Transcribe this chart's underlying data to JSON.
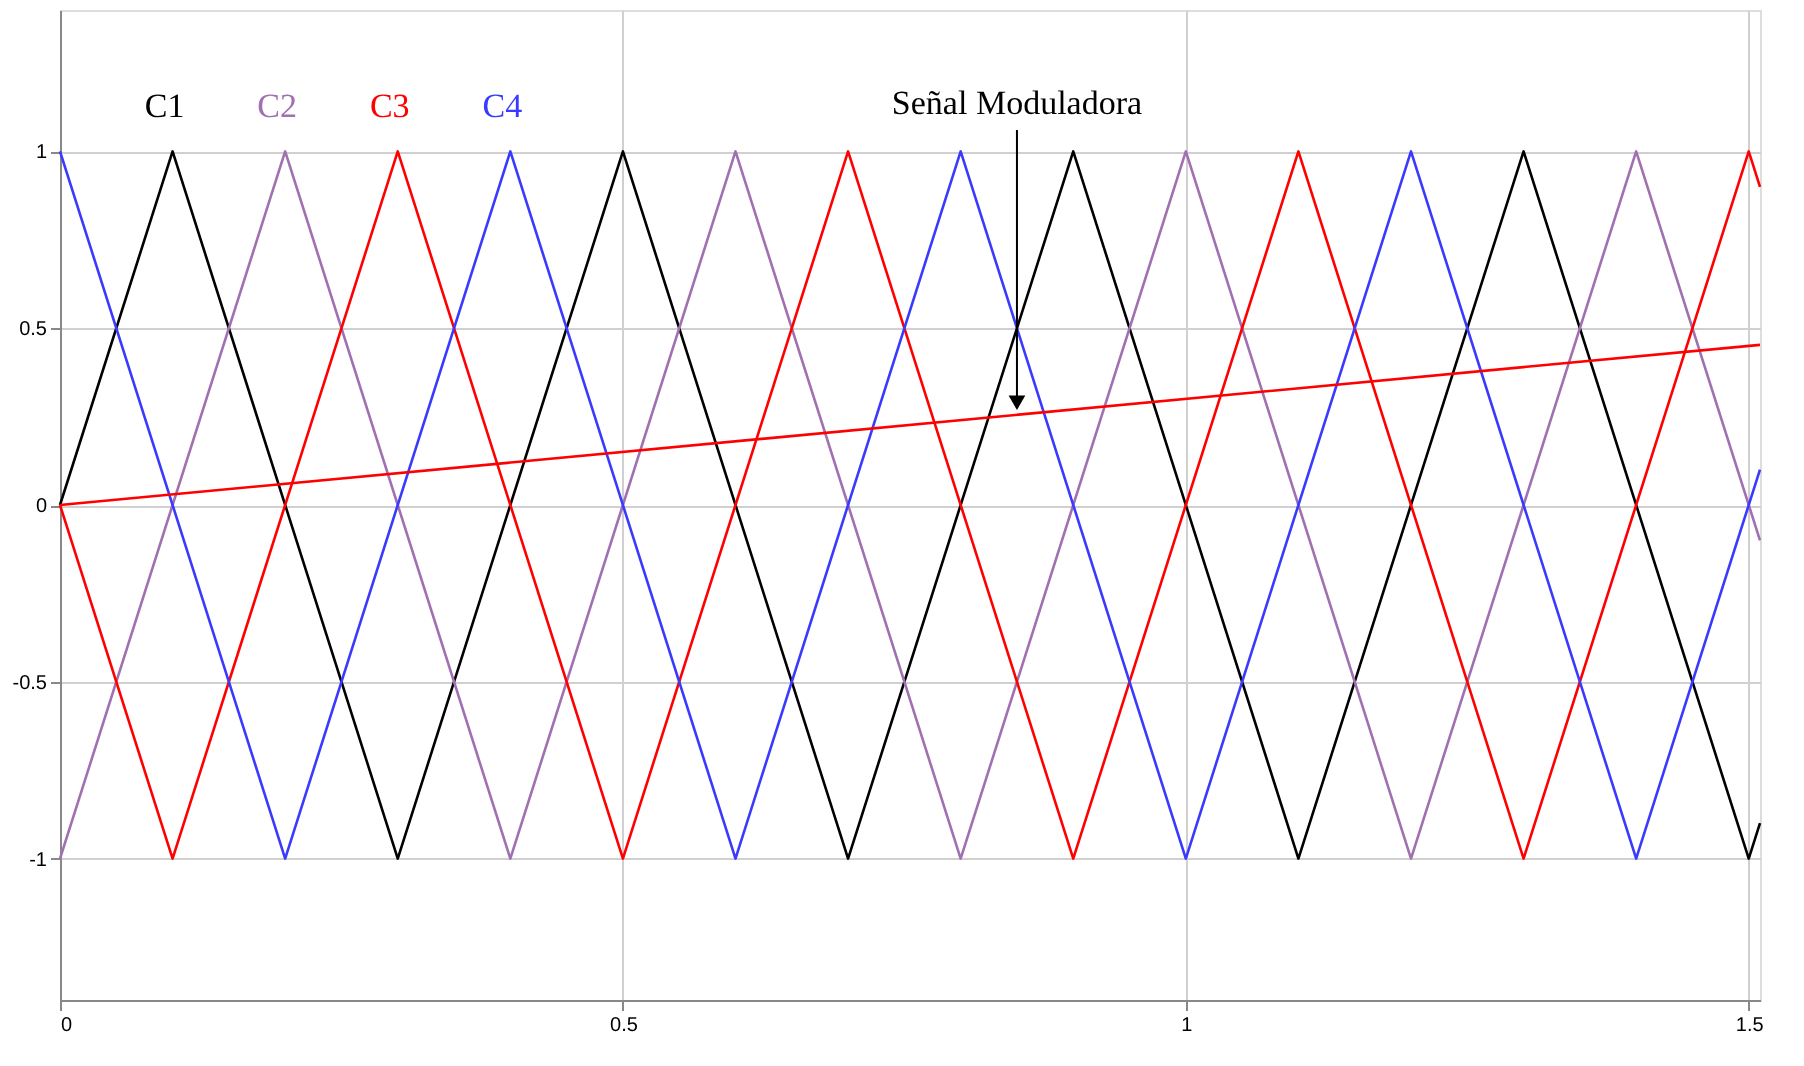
{
  "chart_data": {
    "type": "line",
    "xlim": [
      0,
      1.51
    ],
    "ylim": [
      -1.4,
      1.4
    ],
    "xticks": [
      0,
      0.5,
      1,
      1.5
    ],
    "yticks": [
      -1,
      -0.5,
      0,
      0.5,
      1
    ],
    "grid": true,
    "legend": false,
    "line_style": "solid",
    "marker": "none",
    "series": [
      {
        "name": "C1",
        "color": "#000000",
        "x": [
          0,
          0.1,
          0.3,
          0.5,
          0.7,
          0.9,
          1.1,
          1.3,
          1.5,
          1.51
        ],
        "values": [
          0,
          1,
          -1,
          1,
          -1,
          1,
          -1,
          1,
          -1,
          -0.9
        ]
      },
      {
        "name": "C2",
        "color": "#a070b0",
        "x": [
          0,
          0.2,
          0.4,
          0.6,
          0.8,
          1.0,
          1.2,
          1.4,
          1.51
        ],
        "values": [
          -1,
          1,
          -1,
          1,
          -1,
          1,
          -1,
          1,
          -0.1
        ]
      },
      {
        "name": "C3",
        "color": "#ff0000",
        "x": [
          0,
          0.1,
          0.3,
          0.5,
          0.7,
          0.9,
          1.1,
          1.3,
          1.5,
          1.51
        ],
        "values": [
          0,
          -1,
          1,
          -1,
          1,
          -1,
          1,
          -1,
          1,
          0.9
        ]
      },
      {
        "name": "C4",
        "color": "#3a3aff",
        "x": [
          0,
          0.2,
          0.4,
          0.6,
          0.8,
          1.0,
          1.2,
          1.4,
          1.51
        ],
        "values": [
          1,
          -1,
          1,
          -1,
          1,
          -1,
          1,
          -1,
          0.1
        ]
      },
      {
        "color": "#ff0000",
        "x": [
          0,
          1.51
        ],
        "values": [
          0,
          0.453
        ]
      }
    ],
    "annotations": [
      {
        "text": "Señal Moduladora",
        "x": 0.85,
        "y": 0.255
      }
    ]
  }
}
